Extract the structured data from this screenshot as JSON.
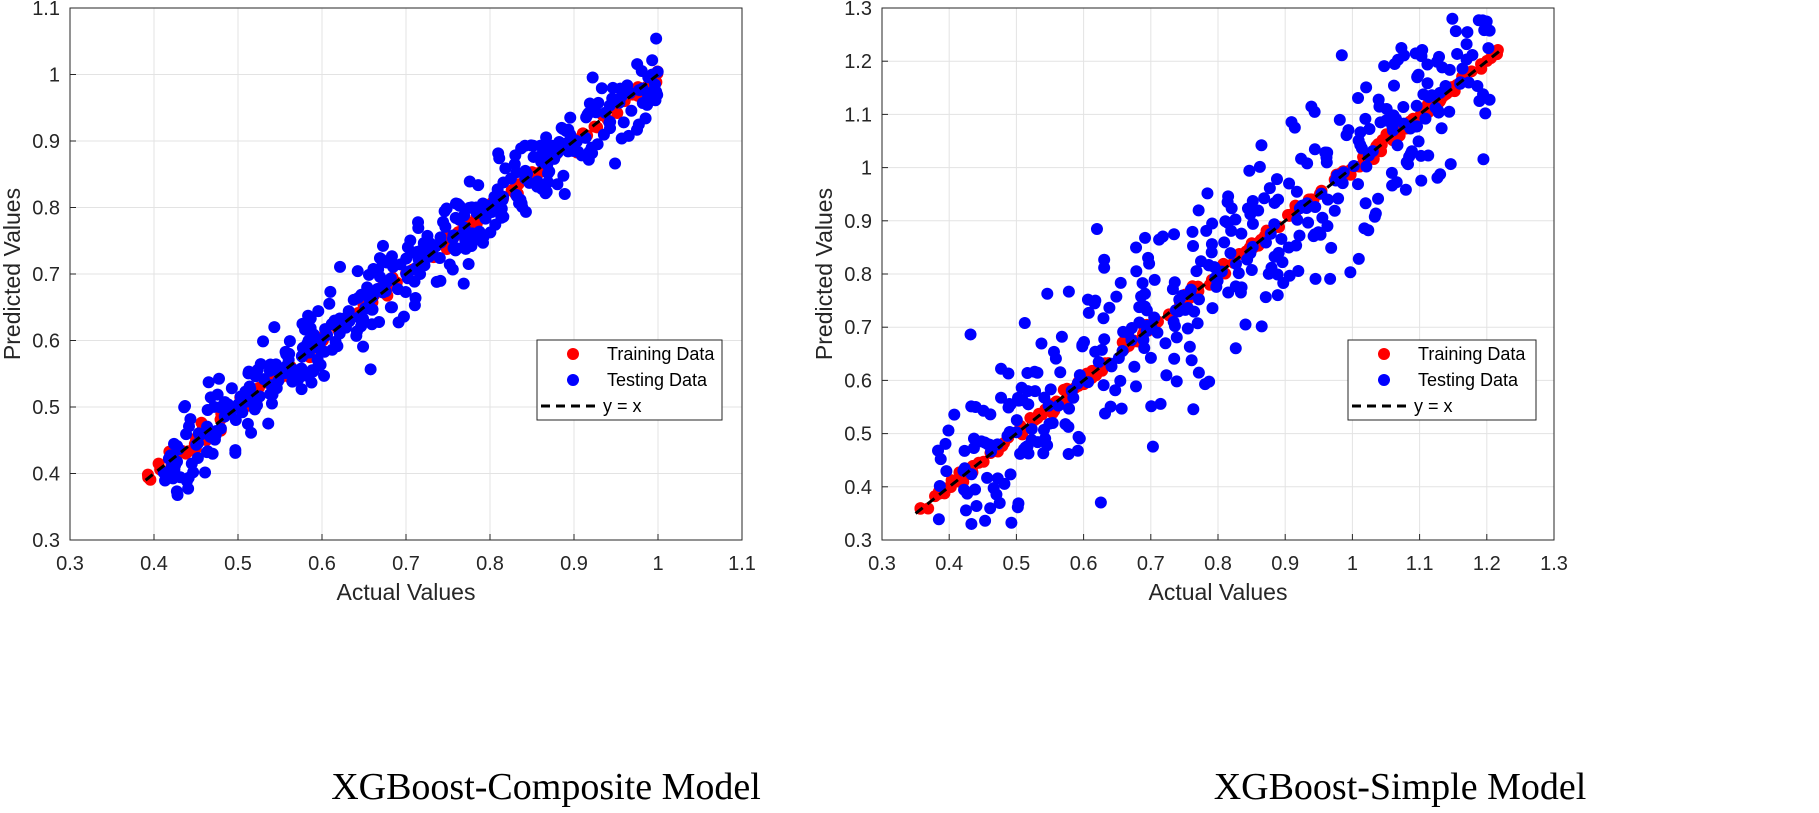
{
  "chart_data": [
    {
      "type": "scatter",
      "caption": "XGBoost-Composite Model",
      "xlabel": "Actual Values",
      "ylabel": "Predicted Values",
      "xlim": [
        0.3,
        1.1
      ],
      "ylim": [
        0.3,
        1.1
      ],
      "xticks": [
        0.3,
        0.4,
        0.5,
        0.6,
        0.7,
        0.8,
        0.9,
        1.0,
        1.1
      ],
      "yticks": [
        0.3,
        0.4,
        0.5,
        0.6,
        0.7,
        0.8,
        0.9,
        1.0,
        1.1
      ],
      "xtick_labels": [
        "0.3",
        "0.4",
        "0.5",
        "0.6",
        "0.7",
        "0.8",
        "0.9",
        "1",
        "1.1"
      ],
      "ytick_labels": [
        "0.3",
        "0.4",
        "0.5",
        "0.6",
        "0.7",
        "0.8",
        "0.9",
        "1",
        "1.1"
      ],
      "grid": true,
      "legend_position": "right-middle",
      "series": [
        {
          "name": "Training Data",
          "color": "#ff0000",
          "marker": "circle",
          "x_range": [
            0.39,
            1.0
          ],
          "spread": 0.006,
          "count": 150
        },
        {
          "name": "Testing Data",
          "color": "#0000ff",
          "marker": "circle",
          "x_range": [
            0.41,
            1.0
          ],
          "spread": 0.03,
          "count": 420
        },
        {
          "name": "y = x",
          "color": "#000000",
          "style": "dashed",
          "x": [
            0.39,
            1.0
          ],
          "y": [
            0.39,
            1.0
          ]
        }
      ]
    },
    {
      "type": "scatter",
      "caption": "XGBoost-Simple Model",
      "xlabel": "Actual Values",
      "ylabel": "Predicted Values",
      "xlim": [
        0.3,
        1.3
      ],
      "ylim": [
        0.3,
        1.3
      ],
      "xticks": [
        0.3,
        0.4,
        0.5,
        0.6,
        0.7,
        0.8,
        0.9,
        1.0,
        1.1,
        1.2,
        1.3
      ],
      "yticks": [
        0.3,
        0.4,
        0.5,
        0.6,
        0.7,
        0.8,
        0.9,
        1.0,
        1.1,
        1.2,
        1.3
      ],
      "xtick_labels": [
        "0.3",
        "0.4",
        "0.5",
        "0.6",
        "0.7",
        "0.8",
        "0.9",
        "1",
        "1.1",
        "1.2",
        "1.3"
      ],
      "ytick_labels": [
        "0.3",
        "0.4",
        "0.5",
        "0.6",
        "0.7",
        "0.8",
        "0.9",
        "1",
        "1.1",
        "1.2",
        "1.3"
      ],
      "grid": true,
      "legend_position": "right-middle",
      "series": [
        {
          "name": "Training Data",
          "color": "#ff0000",
          "marker": "circle",
          "x_range": [
            0.35,
            1.22
          ],
          "spread": 0.006,
          "count": 180
        },
        {
          "name": "Testing Data",
          "color": "#0000ff",
          "marker": "circle",
          "x_range": [
            0.38,
            1.21
          ],
          "spread": 0.09,
          "count": 420
        },
        {
          "name": "y = x",
          "color": "#000000",
          "style": "dashed",
          "x": [
            0.35,
            1.22
          ],
          "y": [
            0.35,
            1.22
          ]
        }
      ]
    }
  ]
}
